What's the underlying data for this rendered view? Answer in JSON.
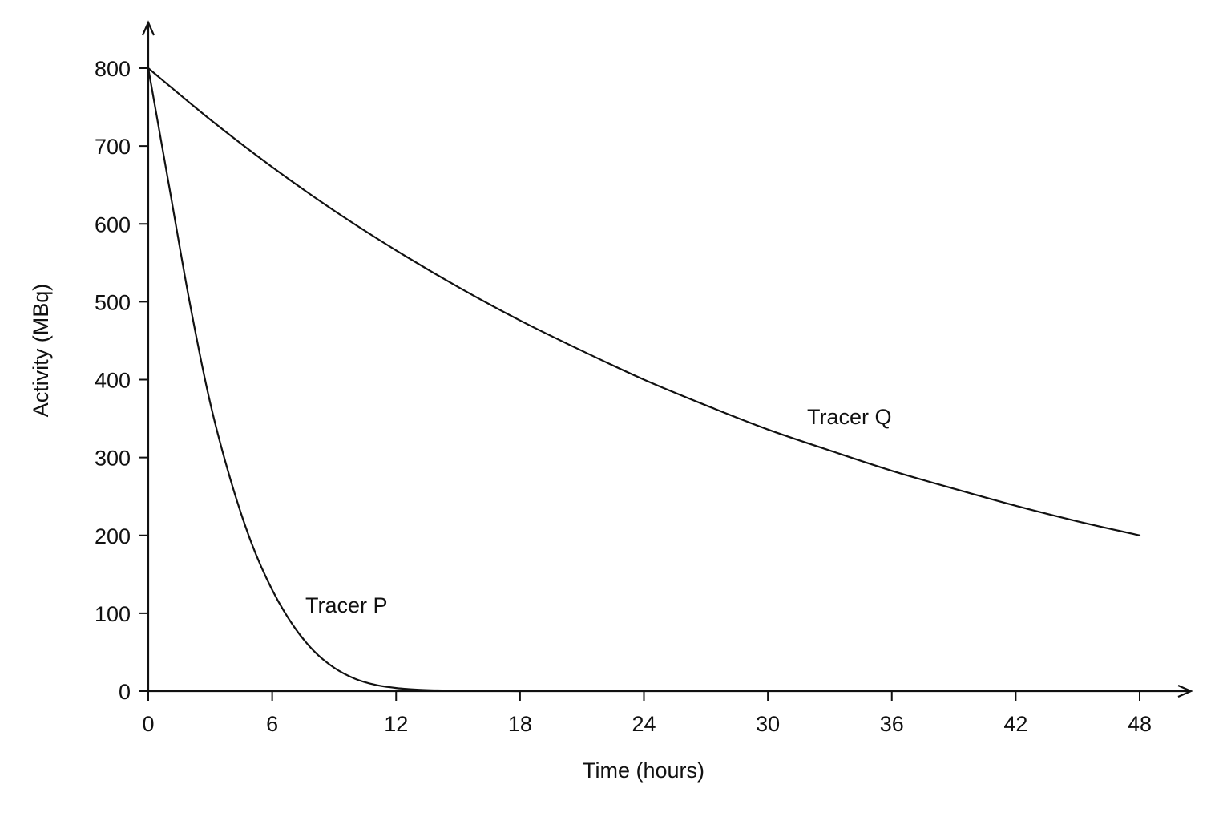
{
  "chart_data": {
    "type": "line",
    "title": "",
    "xlabel": "Time (hours)",
    "ylabel": "Activity (MBq)",
    "xlim": [
      0,
      48
    ],
    "ylim": [
      0,
      800
    ],
    "x_ticks": [
      "0",
      "6",
      "12",
      "18",
      "24",
      "30",
      "36",
      "42",
      "48"
    ],
    "y_ticks": [
      "0",
      "100",
      "200",
      "300",
      "400",
      "500",
      "600",
      "700",
      "800"
    ],
    "grid": false,
    "legend": "none",
    "series": [
      {
        "name": "Tracer P",
        "x": [
          0,
          1,
          2,
          3,
          4,
          5,
          6,
          7,
          8,
          9,
          10,
          11,
          12,
          13,
          14,
          15,
          16,
          17,
          18
        ],
        "y": [
          800,
          650,
          500,
          370,
          270,
          190,
          130,
          85,
          52,
          30,
          16,
          8,
          4,
          2,
          1,
          0.5,
          0.2,
          0.1,
          0
        ],
        "color": "#111111"
      },
      {
        "name": "Tracer Q",
        "x": [
          0,
          3,
          6,
          9,
          12,
          15,
          18,
          21,
          24,
          27,
          30,
          33,
          36,
          39,
          42,
          45,
          48
        ],
        "y": [
          800,
          734,
          673,
          617,
          566,
          519,
          476,
          437,
          400,
          367,
          336,
          309,
          283,
          260,
          238,
          218,
          200
        ],
        "color": "#111111"
      }
    ]
  }
}
